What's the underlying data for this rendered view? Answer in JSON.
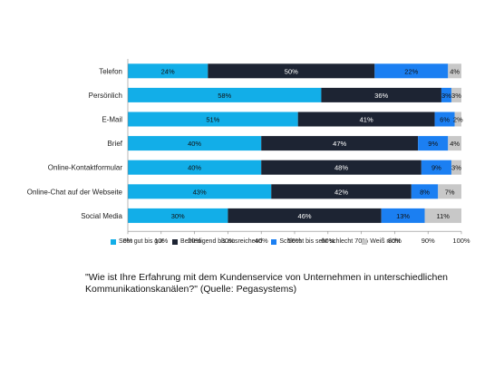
{
  "chart_data": {
    "type": "bar",
    "orientation": "horizontal",
    "stacked": true,
    "categories": [
      "Telefon",
      "Persönlich",
      "E-Mail",
      "Brief",
      "Online-Kontaktformular",
      "Online-Chat auf der Webseite",
      "Social Media"
    ],
    "series": [
      {
        "name": "Sehr gut bis gut",
        "color": "#12aee8",
        "values": [
          24,
          58,
          51,
          40,
          40,
          43,
          30
        ],
        "labels": [
          "24%",
          "58%",
          "51%",
          "40%",
          "40%",
          "43%",
          "30%"
        ]
      },
      {
        "name": "Befriedigend bis ausreichend",
        "color": "#1d2433",
        "values": [
          50,
          36,
          41,
          47,
          48,
          42,
          46
        ],
        "labels": [
          "50%",
          "36%",
          "41%",
          "47%",
          "48%",
          "42%",
          "46%"
        ]
      },
      {
        "name": "Schlecht bis sehr schlecht",
        "color": "#1b7ff2",
        "values": [
          22,
          3,
          6,
          9,
          9,
          8,
          13
        ],
        "labels": [
          "22%",
          "3%",
          "6%",
          "9%",
          "9%",
          "8%",
          "13%"
        ]
      },
      {
        "name": "Weiß nicht",
        "color": "#c8c8c8",
        "values": [
          4,
          3,
          2,
          4,
          3,
          7,
          11
        ],
        "labels": [
          "4%",
          "3%",
          "2%",
          "4%",
          "3%",
          "7%",
          "11%"
        ]
      }
    ],
    "xlim": [
      0,
      100
    ],
    "xticks": [
      "0%",
      "10%",
      "20%",
      "30%",
      "40%",
      "50%",
      "60%",
      "70%",
      "80%",
      "90%",
      "100%"
    ],
    "legend_position": "bottom",
    "grid": false
  },
  "caption": "\"Wie ist Ihre Erfahrung mit dem Kundenservice von Unternehmen in unterschiedlichen Kommunikationskanälen?\" (Quelle: Pegasystems)"
}
